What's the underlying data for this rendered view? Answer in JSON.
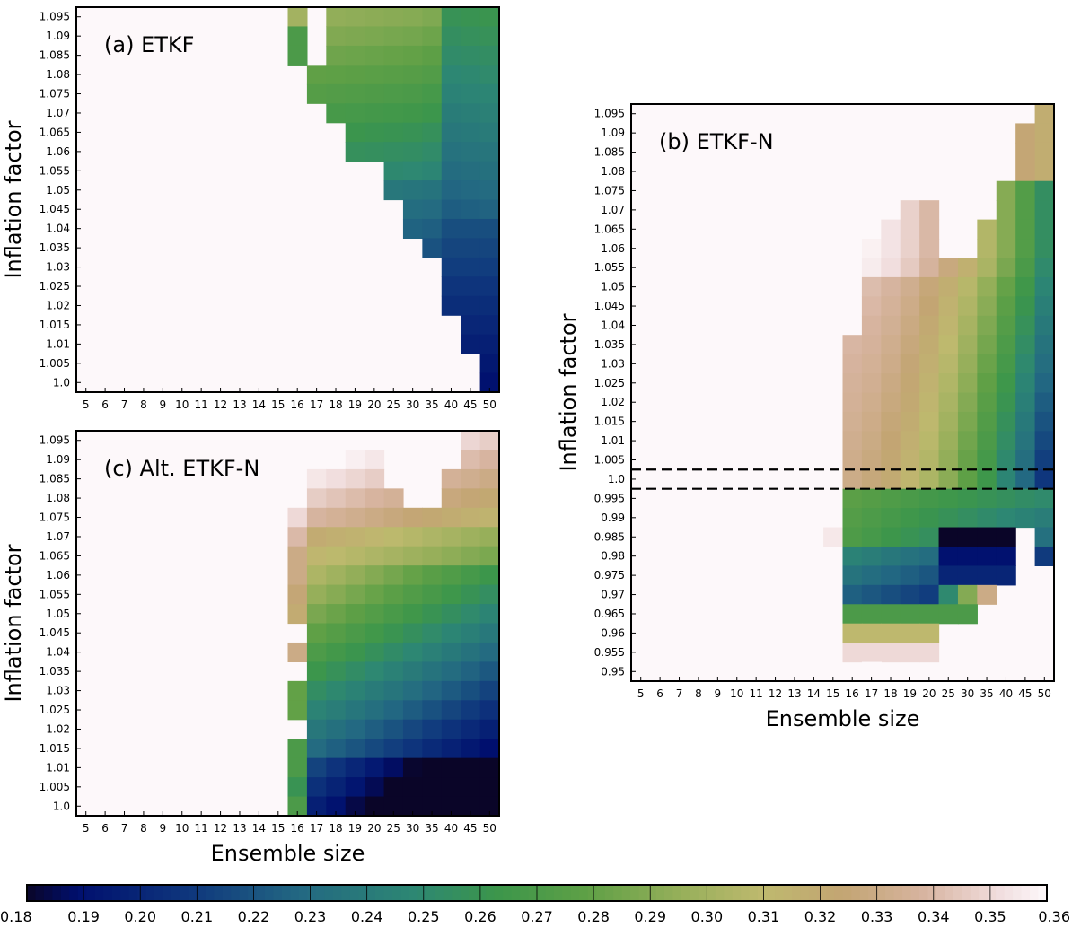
{
  "chart_data": {
    "type": "heatmap",
    "colorbar": {
      "min": 0.18,
      "max": 0.36,
      "step": 0.01,
      "ticks": [
        "0.18",
        "0.19",
        "0.20",
        "0.21",
        "0.22",
        "0.23",
        "0.24",
        "0.25",
        "0.26",
        "0.27",
        "0.28",
        "0.29",
        "0.30",
        "0.31",
        "0.32",
        "0.33",
        "0.34",
        "0.35",
        "0.36"
      ],
      "colormap": "gist_earth-like (navy → teal → green → olive → tan → pink-white)"
    },
    "ensemble_sizes": [
      "5",
      "6",
      "7",
      "8",
      "9",
      "10",
      "11",
      "12",
      "13",
      "14",
      "15",
      "16",
      "17",
      "18",
      "19",
      "20",
      "25",
      "30",
      "35",
      "40",
      "45",
      "50"
    ],
    "panels": [
      {
        "id": "a",
        "label": "(a) ETKF",
        "xlabel": "",
        "ylabel": "Inflation factor",
        "y_ticks": [
          "1.0",
          "1.005",
          "1.01",
          "1.015",
          "1.02",
          "1.025",
          "1.03",
          "1.035",
          "1.04",
          "1.045",
          "1.05",
          "1.055",
          "1.06",
          "1.065",
          "1.07",
          "1.075",
          "1.08",
          "1.085",
          "1.09",
          "1.095"
        ],
        "heat": {
          "mode": "etkf"
        }
      },
      {
        "id": "b",
        "label": "(b) ETKF-N",
        "xlabel": "Ensemble size",
        "ylabel": "Inflation factor",
        "y_ticks": [
          "0.95",
          "0.955",
          "0.96",
          "0.965",
          "0.97",
          "0.975",
          "0.98",
          "0.985",
          "0.99",
          "0.995",
          "1.0",
          "1.005",
          "1.01",
          "1.015",
          "1.02",
          "1.025",
          "1.03",
          "1.035",
          "1.04",
          "1.045",
          "1.05",
          "1.055",
          "1.06",
          "1.065",
          "1.07",
          "1.075",
          "1.08",
          "1.085",
          "1.09",
          "1.095"
        ],
        "dashed_lines_y": [
          0.9975,
          1.0025
        ],
        "heat": {
          "mode": "etkfn"
        }
      },
      {
        "id": "c",
        "label": "(c) Alt. ETKF-N",
        "xlabel": "Ensemble size",
        "ylabel": "Inflation factor",
        "y_ticks": [
          "1.0",
          "1.005",
          "1.01",
          "1.015",
          "1.02",
          "1.025",
          "1.03",
          "1.035",
          "1.04",
          "1.045",
          "1.05",
          "1.055",
          "1.06",
          "1.065",
          "1.07",
          "1.075",
          "1.08",
          "1.085",
          "1.09",
          "1.095"
        ],
        "heat": {
          "mode": "alt"
        }
      }
    ]
  }
}
